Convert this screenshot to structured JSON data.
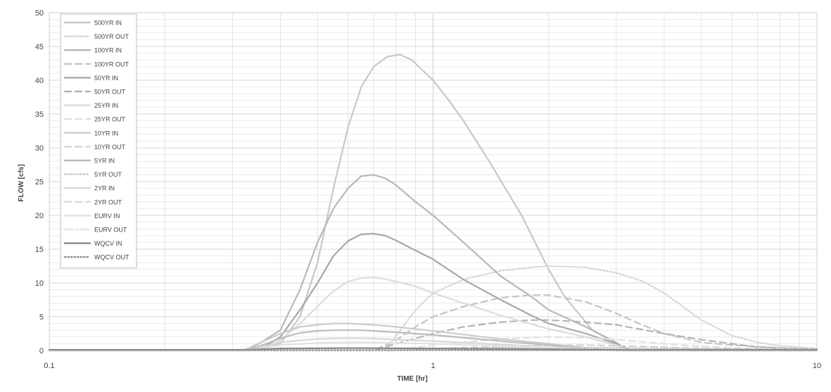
{
  "chart_data": {
    "type": "line",
    "title": "",
    "xlabel": "TIME [hr]",
    "ylabel": "FLOW [cfs]",
    "xscale": "log",
    "xlim": [
      0.1,
      10
    ],
    "ylim": [
      0,
      50
    ],
    "yticks": [
      0,
      5,
      10,
      15,
      20,
      25,
      30,
      35,
      40,
      45,
      50
    ],
    "xticks": [
      0.1,
      1,
      10
    ],
    "xtick_labels": [
      "0.1",
      "1",
      "10"
    ],
    "grid": true,
    "legend_position": "top-left",
    "series": [
      {
        "name": "500YR IN",
        "color": "#c8c8c8",
        "dash": "solid",
        "x": [
          0.1,
          0.33,
          0.4,
          0.45,
          0.5,
          0.55,
          0.6,
          0.65,
          0.7,
          0.76,
          0.82,
          0.88,
          1.0,
          1.1,
          1.2,
          1.4,
          1.7,
          2.0,
          2.2,
          2.6,
          3.0,
          3.3,
          10
        ],
        "y": [
          0,
          0,
          1,
          5,
          13,
          24,
          33,
          39,
          42,
          43.5,
          43.8,
          43,
          40,
          37,
          34,
          28,
          20,
          12,
          8,
          3,
          1,
          0,
          0
        ]
      },
      {
        "name": "500YR OUT",
        "color": "#d0d0d0",
        "dash": "dot",
        "x": [
          0.1,
          0.75,
          0.9,
          1.0,
          1.2,
          1.5,
          1.8,
          2.0,
          2.5,
          3.0,
          3.5,
          4.0,
          5.0,
          6.0,
          7.0,
          8.0,
          10
        ],
        "y": [
          0,
          0,
          6,
          8.5,
          10.5,
          11.8,
          12.3,
          12.5,
          12.3,
          11.5,
          10.3,
          8.5,
          4.5,
          2.2,
          1.2,
          0.7,
          0.3
        ]
      },
      {
        "name": "100YR IN",
        "color": "#b8b8b8",
        "dash": "solid",
        "x": [
          0.1,
          0.33,
          0.4,
          0.45,
          0.5,
          0.55,
          0.6,
          0.65,
          0.7,
          0.75,
          0.8,
          0.9,
          1.0,
          1.2,
          1.5,
          1.8,
          2.0,
          2.5,
          3.0,
          3.2,
          10
        ],
        "y": [
          0,
          0,
          3,
          9,
          16,
          21,
          24,
          25.8,
          26,
          25.5,
          24.5,
          22,
          20,
          16,
          11,
          8,
          6,
          3.5,
          1.2,
          0,
          0
        ]
      },
      {
        "name": "100YR OUT",
        "color": "#c4c4c4",
        "dash": "dash",
        "x": [
          0.1,
          0.7,
          0.8,
          0.9,
          1.0,
          1.2,
          1.5,
          1.8,
          2.0,
          2.5,
          3.0,
          3.5,
          4.0,
          5.0,
          6.0,
          8.0,
          10
        ],
        "y": [
          0,
          0,
          1.5,
          3.5,
          5,
          6.5,
          7.8,
          8.2,
          8.2,
          7.2,
          5.5,
          3.8,
          2.5,
          1.2,
          0.8,
          0.4,
          0.2
        ]
      },
      {
        "name": "50YR IN",
        "color": "#a8a8a8",
        "dash": "solid",
        "x": [
          0.1,
          0.35,
          0.4,
          0.45,
          0.5,
          0.55,
          0.6,
          0.65,
          0.7,
          0.75,
          0.8,
          0.9,
          1.0,
          1.2,
          1.5,
          1.8,
          2.0,
          2.5,
          3.0,
          3.3,
          10
        ],
        "y": [
          0,
          0,
          2,
          6,
          10,
          14,
          16.2,
          17.2,
          17.3,
          17,
          16.3,
          14.8,
          13.5,
          10.5,
          7.5,
          5.2,
          4,
          2.5,
          1,
          0,
          0
        ]
      },
      {
        "name": "50YR OUT",
        "color": "#b4b4b4",
        "dash": "dash",
        "x": [
          0.1,
          0.7,
          0.8,
          1.0,
          1.2,
          1.5,
          1.8,
          2.0,
          2.5,
          3.0,
          4.0,
          5.0,
          6.0,
          7.0,
          10
        ],
        "y": [
          0,
          0,
          1,
          2.5,
          3.5,
          4.2,
          4.5,
          4.5,
          4.2,
          3.8,
          2.5,
          1.6,
          1,
          0.5,
          0.1
        ]
      },
      {
        "name": "25YR IN",
        "color": "#dcdcdc",
        "dash": "solid",
        "x": [
          0.1,
          0.35,
          0.4,
          0.45,
          0.5,
          0.55,
          0.6,
          0.65,
          0.7,
          0.75,
          0.8,
          0.9,
          1.0,
          1.2,
          1.5,
          2.0,
          2.5,
          3.0,
          3.2,
          10
        ],
        "y": [
          0,
          0,
          1.5,
          4,
          6.5,
          8.8,
          10.2,
          10.7,
          10.8,
          10.6,
          10.2,
          9.5,
          8.5,
          7,
          5.2,
          3.2,
          2,
          0.8,
          0,
          0
        ]
      },
      {
        "name": "25YR OUT",
        "color": "#e0e0e0",
        "dash": "dash",
        "x": [
          0.1,
          0.8,
          1.0,
          1.5,
          2.0,
          2.5,
          3.0,
          4.0,
          5.0,
          6.0,
          10
        ],
        "y": [
          0,
          0,
          0.8,
          1.7,
          2,
          1.9,
          1.6,
          1,
          0.6,
          0.4,
          0.1
        ]
      },
      {
        "name": "10YR IN",
        "color": "#cccccc",
        "dash": "solid",
        "x": [
          0.1,
          0.32,
          0.4,
          0.45,
          0.5,
          0.55,
          0.6,
          0.65,
          0.7,
          0.8,
          1.0,
          1.5,
          2.0,
          2.5,
          3.0,
          10
        ],
        "y": [
          0,
          0,
          2.5,
          3.5,
          3.8,
          4,
          4,
          3.9,
          3.8,
          3.5,
          2.9,
          1.7,
          1,
          0.4,
          0,
          0
        ]
      },
      {
        "name": "10YR OUT",
        "color": "#d4d4d4",
        "dash": "dash",
        "x": [
          0.1,
          0.8,
          1.0,
          1.5,
          2.0,
          2.5,
          3.0,
          4.0,
          5.0,
          10
        ],
        "y": [
          0,
          0,
          0.3,
          0.6,
          0.8,
          0.8,
          0.7,
          0.5,
          0.3,
          0.1
        ]
      },
      {
        "name": "5YR IN",
        "color": "#bcbcbc",
        "dash": "solid",
        "x": [
          0.1,
          0.33,
          0.4,
          0.45,
          0.5,
          0.55,
          0.6,
          0.65,
          0.7,
          0.8,
          1.0,
          1.5,
          2.0,
          2.5,
          3.0,
          10
        ],
        "y": [
          0,
          0,
          1.8,
          2.6,
          2.9,
          3,
          3,
          3,
          2.9,
          2.7,
          2.3,
          1.4,
          0.8,
          0.3,
          0,
          0
        ]
      },
      {
        "name": "5YR OUT",
        "color": "#c8c8c8",
        "dash": "dot",
        "x": [
          0.1,
          0.8,
          1.0,
          1.5,
          2.0,
          3.0,
          4.0,
          10
        ],
        "y": [
          0,
          0,
          0.2,
          0.4,
          0.5,
          0.4,
          0.3,
          0.1
        ]
      },
      {
        "name": "2YR IN",
        "color": "#d8d8d8",
        "dash": "solid",
        "x": [
          0.1,
          0.33,
          0.4,
          0.45,
          0.5,
          0.55,
          0.6,
          0.65,
          0.7,
          0.8,
          1.0,
          1.5,
          2.0,
          2.5,
          3.0,
          10
        ],
        "y": [
          0,
          0,
          1.2,
          1.5,
          1.7,
          1.8,
          1.8,
          1.8,
          1.75,
          1.6,
          1.4,
          0.9,
          0.5,
          0.2,
          0,
          0
        ]
      },
      {
        "name": "2YR OUT",
        "color": "#dcdcdc",
        "dash": "dash",
        "x": [
          0.1,
          0.8,
          1.0,
          1.5,
          2.0,
          3.0,
          4.0,
          10
        ],
        "y": [
          0,
          0,
          0.1,
          0.25,
          0.3,
          0.25,
          0.15,
          0.05
        ]
      },
      {
        "name": "EURV IN",
        "color": "#e2e2e2",
        "dash": "solid",
        "x": [
          0.1,
          0.33,
          0.4,
          0.5,
          0.6,
          0.7,
          0.8,
          1.0,
          1.5,
          2.0,
          2.5,
          3.0,
          10
        ],
        "y": [
          0,
          0,
          0.8,
          1.1,
          1.2,
          1.2,
          1.1,
          1,
          0.7,
          0.4,
          0.15,
          0,
          0
        ]
      },
      {
        "name": "EURV OUT",
        "color": "#e6e6e6",
        "dash": "dashdot",
        "x": [
          0.1,
          0.8,
          1.0,
          2.0,
          3.0,
          4.0,
          10
        ],
        "y": [
          0,
          0,
          0.05,
          0.15,
          0.15,
          0.1,
          0.05
        ]
      },
      {
        "name": "WQCV IN",
        "color": "#888888",
        "dash": "solid",
        "x": [
          0.1,
          0.33,
          0.4,
          0.6,
          1.0,
          2.0,
          3.0,
          10
        ],
        "y": [
          0.1,
          0.1,
          0.3,
          0.35,
          0.3,
          0.2,
          0.1,
          0.1
        ]
      },
      {
        "name": "WQCV OUT",
        "color": "#909090",
        "dash": "dot",
        "x": [
          0.1,
          0.6,
          1.0,
          3.0,
          10
        ],
        "y": [
          0.05,
          0.05,
          0.05,
          0.05,
          0.05
        ]
      }
    ]
  }
}
